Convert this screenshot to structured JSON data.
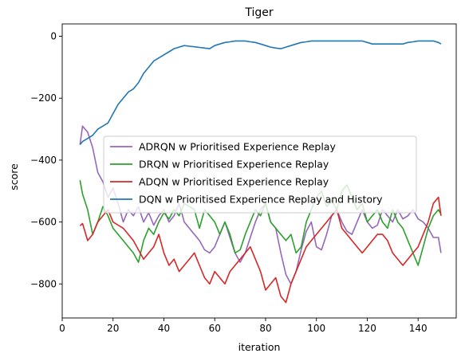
{
  "chart_data": {
    "type": "line",
    "title": "Tiger",
    "xlabel": "iteration",
    "ylabel": "score",
    "xlim": [
      0,
      155
    ],
    "ylim": [
      -910,
      40
    ],
    "xticks": [
      0,
      20,
      40,
      60,
      80,
      100,
      120,
      140
    ],
    "yticks": [
      0,
      -200,
      -400,
      -600,
      -800
    ],
    "ytick_labels": [
      "0",
      "−200",
      "−400",
      "−600",
      "−800"
    ],
    "grid": false,
    "legend_position": "center",
    "x": [
      7,
      8,
      10,
      12,
      14,
      16,
      18,
      20,
      22,
      24,
      26,
      28,
      30,
      32,
      34,
      36,
      38,
      40,
      42,
      44,
      46,
      48,
      50,
      52,
      54,
      56,
      58,
      60,
      62,
      64,
      66,
      68,
      70,
      72,
      74,
      76,
      78,
      80,
      82,
      84,
      86,
      88,
      90,
      92,
      94,
      96,
      98,
      100,
      102,
      104,
      106,
      108,
      110,
      112,
      114,
      116,
      118,
      120,
      122,
      124,
      126,
      128,
      130,
      132,
      134,
      136,
      138,
      140,
      142,
      144,
      146,
      148,
      149
    ],
    "series": [
      {
        "name": "ADRQN w Prioritised Experience Replay",
        "color": "#9467bd",
        "values": [
          -350,
          -290,
          -310,
          -360,
          -440,
          -470,
          -520,
          -490,
          -540,
          -600,
          -560,
          -580,
          -550,
          -600,
          -570,
          -610,
          -580,
          -560,
          -600,
          -580,
          -540,
          -600,
          -620,
          -640,
          -660,
          -690,
          -700,
          -680,
          -640,
          -600,
          -650,
          -700,
          -730,
          -700,
          -650,
          -600,
          -560,
          -540,
          -600,
          -620,
          -700,
          -770,
          -800,
          -760,
          -690,
          -630,
          -600,
          -680,
          -690,
          -640,
          -580,
          -560,
          -600,
          -630,
          -640,
          -600,
          -560,
          -600,
          -620,
          -610,
          -560,
          -580,
          -600,
          -560,
          -590,
          -580,
          -560,
          -590,
          -600,
          -620,
          -650,
          -650,
          -700
        ]
      },
      {
        "name": "DRQN w Prioritised Experience Replay",
        "color": "#2ca02c",
        "values": [
          -465,
          -510,
          -560,
          -640,
          -600,
          -550,
          -580,
          -620,
          -640,
          -660,
          -680,
          -700,
          -730,
          -660,
          -620,
          -640,
          -600,
          -570,
          -590,
          -560,
          -580,
          -540,
          -550,
          -560,
          -620,
          -560,
          -580,
          -600,
          -640,
          -600,
          -640,
          -700,
          -690,
          -640,
          -600,
          -560,
          -580,
          -540,
          -600,
          -620,
          -640,
          -660,
          -640,
          -700,
          -680,
          -600,
          -560,
          -520,
          -500,
          -550,
          -530,
          -560,
          -500,
          -480,
          -520,
          -560,
          -540,
          -600,
          -580,
          -560,
          -600,
          -620,
          -560,
          -600,
          -620,
          -660,
          -700,
          -740,
          -680,
          -620,
          -580,
          -560,
          -575
        ]
      },
      {
        "name": "ADQN w Prioritised Experience Replay",
        "color": "#d62728",
        "values": [
          -612,
          -605,
          -660,
          -640,
          -600,
          -580,
          -560,
          -600,
          -610,
          -620,
          -640,
          -660,
          -690,
          -720,
          -700,
          -680,
          -640,
          -700,
          -740,
          -720,
          -760,
          -740,
          -720,
          -700,
          -740,
          -780,
          -800,
          -760,
          -780,
          -800,
          -760,
          -740,
          -720,
          -700,
          -680,
          -720,
          -760,
          -820,
          -800,
          -780,
          -840,
          -860,
          -800,
          -760,
          -720,
          -680,
          -660,
          -640,
          -620,
          -600,
          -580,
          -560,
          -620,
          -640,
          -660,
          -680,
          -700,
          -680,
          -660,
          -640,
          -640,
          -660,
          -700,
          -720,
          -740,
          -720,
          -700,
          -680,
          -640,
          -600,
          -540,
          -520,
          -580
        ]
      },
      {
        "name": "DQN w Prioritised Experience Replay and History",
        "color": "#1f77b4",
        "values": [
          -350,
          -340,
          -330,
          -320,
          -300,
          -290,
          -280,
          -250,
          -220,
          -200,
          -180,
          -170,
          -150,
          -120,
          -100,
          -80,
          -70,
          -60,
          -50,
          -40,
          -35,
          -30,
          -32,
          -34,
          -36,
          -38,
          -40,
          -30,
          -25,
          -20,
          -18,
          -15,
          -15,
          -15,
          -18,
          -20,
          -25,
          -30,
          -35,
          -38,
          -40,
          -35,
          -30,
          -25,
          -20,
          -18,
          -15,
          -15,
          -15,
          -15,
          -15,
          -15,
          -15,
          -15,
          -15,
          -15,
          -15,
          -20,
          -25,
          -25,
          -25,
          -25,
          -25,
          -25,
          -25,
          -20,
          -18,
          -15,
          -15,
          -15,
          -15,
          -20,
          -25
        ]
      }
    ]
  }
}
